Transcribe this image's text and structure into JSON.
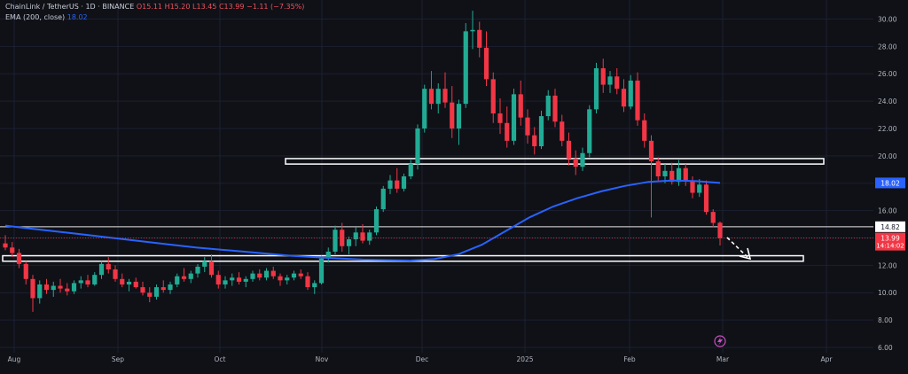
{
  "legend": {
    "symbol": "ChainLink / TetherUS · 1D · BINANCE",
    "o": "O15.11",
    "h": "H15.20",
    "l": "L13.45",
    "c": "C13.99",
    "chg": "−1.11 (−7.35%)",
    "ema_label": "EMA (200, close)",
    "ema_value": "18.02"
  },
  "colors": {
    "bg": "#0f1117",
    "up": "#22ab94",
    "down": "#f23645",
    "ema": "#2962ff",
    "axis_text": "#b2b5be",
    "grid": "#1c2030",
    "box": "#ffffff"
  },
  "chart_data": {
    "type": "candlestick",
    "y_ticks": [
      "30.00",
      "28.00",
      "26.00",
      "24.00",
      "22.00",
      "20.00",
      "18.00",
      "16.00",
      "14.00",
      "12.00",
      "10.00",
      "8.00",
      "6.00"
    ],
    "ylim": [
      6,
      31
    ],
    "x_ticks": [
      "Aug",
      "Sep",
      "Oct",
      "Nov",
      "Dec",
      "2025",
      "Feb",
      "Mar",
      "Apr"
    ],
    "price_labels": {
      "ema": "18.02",
      "level": "14.82",
      "last": "13.99",
      "countdown": "14:14:02"
    },
    "levels": [
      {
        "kind": "zone",
        "from": 19.4,
        "to": 19.8
      },
      {
        "kind": "line",
        "value": 14.82
      },
      {
        "kind": "zone",
        "from": 12.3,
        "to": 12.7
      }
    ],
    "candles": [
      [
        13.6,
        14.2,
        13.1,
        13.3
      ],
      [
        13.3,
        13.7,
        12.6,
        12.9
      ],
      [
        12.9,
        13.2,
        11.8,
        12.1
      ],
      [
        12.1,
        12.3,
        10.6,
        11.0
      ],
      [
        11.0,
        11.3,
        8.6,
        9.6
      ],
      [
        9.6,
        10.9,
        9.2,
        10.6
      ],
      [
        10.6,
        11.0,
        9.9,
        10.2
      ],
      [
        10.2,
        10.8,
        9.7,
        10.5
      ],
      [
        10.5,
        11.0,
        10.0,
        10.3
      ],
      [
        10.3,
        10.7,
        9.8,
        10.1
      ],
      [
        10.1,
        10.9,
        9.9,
        10.7
      ],
      [
        10.7,
        11.2,
        10.3,
        10.9
      ],
      [
        10.9,
        11.3,
        10.4,
        10.6
      ],
      [
        10.6,
        11.5,
        10.5,
        11.3
      ],
      [
        11.3,
        12.3,
        11.0,
        12.1
      ],
      [
        12.1,
        12.6,
        11.4,
        11.7
      ],
      [
        11.7,
        12.0,
        10.8,
        11.0
      ],
      [
        11.0,
        11.4,
        10.4,
        10.6
      ],
      [
        10.6,
        11.0,
        10.1,
        10.8
      ],
      [
        10.8,
        11.1,
        10.3,
        10.4
      ],
      [
        10.4,
        10.8,
        9.8,
        10.0
      ],
      [
        10.0,
        10.4,
        9.3,
        9.7
      ],
      [
        9.7,
        10.6,
        9.5,
        10.4
      ],
      [
        10.4,
        10.9,
        10.0,
        10.2
      ],
      [
        10.2,
        10.8,
        9.9,
        10.6
      ],
      [
        10.6,
        11.4,
        10.4,
        11.2
      ],
      [
        11.2,
        11.8,
        10.8,
        11.0
      ],
      [
        11.0,
        11.6,
        10.7,
        11.4
      ],
      [
        11.4,
        12.1,
        11.1,
        11.9
      ],
      [
        11.9,
        12.6,
        11.5,
        12.3
      ],
      [
        12.3,
        12.8,
        11.1,
        11.3
      ],
      [
        11.3,
        11.6,
        10.3,
        10.6
      ],
      [
        10.6,
        11.2,
        10.3,
        10.9
      ],
      [
        10.9,
        11.4,
        10.5,
        11.1
      ],
      [
        11.1,
        11.5,
        10.6,
        10.8
      ],
      [
        10.8,
        11.2,
        10.4,
        11.0
      ],
      [
        11.0,
        11.6,
        10.8,
        11.4
      ],
      [
        11.4,
        11.7,
        10.9,
        11.1
      ],
      [
        11.1,
        11.8,
        10.9,
        11.6
      ],
      [
        11.6,
        11.9,
        11.0,
        11.2
      ],
      [
        11.2,
        11.4,
        10.5,
        10.9
      ],
      [
        10.9,
        11.3,
        10.6,
        11.1
      ],
      [
        11.1,
        11.6,
        10.9,
        11.4
      ],
      [
        11.4,
        11.7,
        11.0,
        11.2
      ],
      [
        11.2,
        11.5,
        10.2,
        10.4
      ],
      [
        10.4,
        10.9,
        9.9,
        10.7
      ],
      [
        10.7,
        12.7,
        10.6,
        12.5
      ],
      [
        12.5,
        13.3,
        12.2,
        13.0
      ],
      [
        13.0,
        14.9,
        12.8,
        14.6
      ],
      [
        14.6,
        15.1,
        13.0,
        13.4
      ],
      [
        13.4,
        14.1,
        12.8,
        13.9
      ],
      [
        13.9,
        14.8,
        13.4,
        14.4
      ],
      [
        14.4,
        15.0,
        13.6,
        13.8
      ],
      [
        13.8,
        14.6,
        13.5,
        14.4
      ],
      [
        14.4,
        16.3,
        14.2,
        16.1
      ],
      [
        16.1,
        17.8,
        15.9,
        17.6
      ],
      [
        17.6,
        18.6,
        17.2,
        18.2
      ],
      [
        18.2,
        19.1,
        17.3,
        17.6
      ],
      [
        17.6,
        18.7,
        17.4,
        18.5
      ],
      [
        18.5,
        19.7,
        18.3,
        19.4
      ],
      [
        19.4,
        22.3,
        19.0,
        22.0
      ],
      [
        22.0,
        25.2,
        21.7,
        24.9
      ],
      [
        24.9,
        26.2,
        23.4,
        23.8
      ],
      [
        23.8,
        25.3,
        23.1,
        24.9
      ],
      [
        24.9,
        26.1,
        23.5,
        23.9
      ],
      [
        23.9,
        25.1,
        21.3,
        22.0
      ],
      [
        22.0,
        24.1,
        20.8,
        23.8
      ],
      [
        23.8,
        29.7,
        23.5,
        29.1
      ],
      [
        29.1,
        30.6,
        27.8,
        29.2
      ],
      [
        29.2,
        29.8,
        27.2,
        27.9
      ],
      [
        27.9,
        29.1,
        25.1,
        25.6
      ],
      [
        25.6,
        26.1,
        22.4,
        23.1
      ],
      [
        23.1,
        24.2,
        21.6,
        22.4
      ],
      [
        22.4,
        23.6,
        20.6,
        21.1
      ],
      [
        21.1,
        24.9,
        20.8,
        24.5
      ],
      [
        24.5,
        25.5,
        22.2,
        22.8
      ],
      [
        22.8,
        23.4,
        20.9,
        21.5
      ],
      [
        21.5,
        22.1,
        20.1,
        20.7
      ],
      [
        20.7,
        23.3,
        20.5,
        22.9
      ],
      [
        22.9,
        24.8,
        22.6,
        24.4
      ],
      [
        24.4,
        24.9,
        22.1,
        22.5
      ],
      [
        22.5,
        23.0,
        20.7,
        21.1
      ],
      [
        21.1,
        21.7,
        19.3,
        19.8
      ],
      [
        19.8,
        20.4,
        18.6,
        19.2
      ],
      [
        19.2,
        20.6,
        18.9,
        20.2
      ],
      [
        20.2,
        23.7,
        19.9,
        23.4
      ],
      [
        23.4,
        26.8,
        23.1,
        26.4
      ],
      [
        26.4,
        27.1,
        24.6,
        25.2
      ],
      [
        25.2,
        26.2,
        24.6,
        25.8
      ],
      [
        25.8,
        26.4,
        24.5,
        24.9
      ],
      [
        24.9,
        25.6,
        23.2,
        23.6
      ],
      [
        23.6,
        25.9,
        23.4,
        25.5
      ],
      [
        25.5,
        26.1,
        22.2,
        22.6
      ],
      [
        22.6,
        23.1,
        20.6,
        21.1
      ],
      [
        21.1,
        21.5,
        15.5,
        19.6
      ],
      [
        19.6,
        19.9,
        18.1,
        18.5
      ],
      [
        18.5,
        19.4,
        18.0,
        18.9
      ],
      [
        18.9,
        19.5,
        17.9,
        18.1
      ],
      [
        18.1,
        19.7,
        17.8,
        19.1
      ],
      [
        19.1,
        19.4,
        17.8,
        18.2
      ],
      [
        18.2,
        18.5,
        16.9,
        17.3
      ],
      [
        17.3,
        18.3,
        17.0,
        17.9
      ],
      [
        17.9,
        18.2,
        15.7,
        15.9
      ],
      [
        15.9,
        16.1,
        14.8,
        15.1
      ],
      [
        15.11,
        15.2,
        13.45,
        13.99
      ]
    ],
    "ema": [
      14.9,
      14.7,
      14.5,
      14.3,
      14.1,
      13.9,
      13.7,
      13.5,
      13.3,
      13.15,
      13.0,
      12.85,
      12.7,
      12.6,
      12.5,
      12.42,
      12.38,
      12.35,
      12.45,
      12.8,
      13.5,
      14.5,
      15.5,
      16.3,
      16.9,
      17.4,
      17.8,
      18.1,
      18.2,
      18.15,
      18.02
    ]
  }
}
